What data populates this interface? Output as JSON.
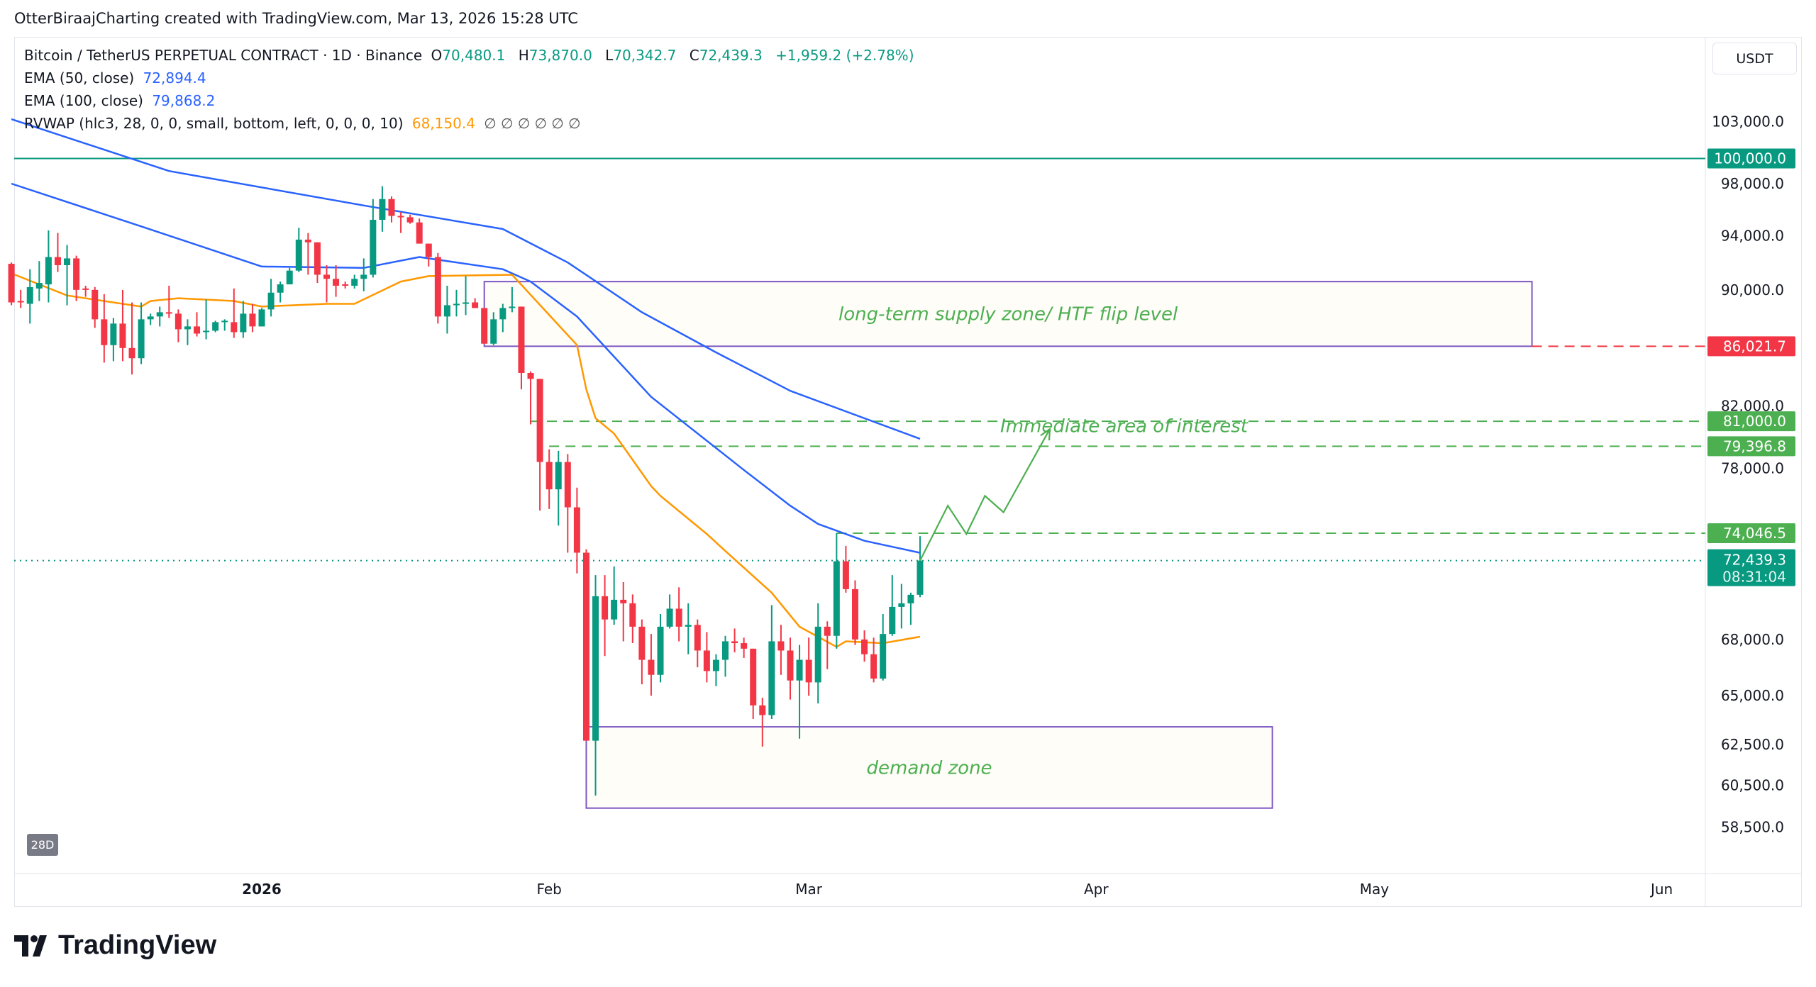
{
  "credit": "OtterBiraajCharting created with TradingView.com, Mar 13, 2026 15:28 UTC",
  "legend": {
    "symbol": "Bitcoin / TetherUS PERPETUAL CONTRACT · 1D · Binance",
    "o_label": "O",
    "o": "70,480.1",
    "h_label": "H",
    "h": "73,870.0",
    "l_label": "L",
    "l": "70,342.7",
    "c_label": "C",
    "c": "72,439.3",
    "change": "+1,959.2 (+2.78%)",
    "ema50_label": "EMA (50, close)",
    "ema50": "72,894.4",
    "ema100_label": "EMA (100, close)",
    "ema100": "79,868.2",
    "rvwap_label": "RVWAP (hlc3, 28, 0, 0, small, bottom, left, 0, 0, 0, 10)",
    "rvwap": "68,150.4",
    "rvwap_extra": "∅ ∅ ∅ ∅ ∅ ∅"
  },
  "currency_button": "USDT",
  "range_badge": "28D",
  "brand": "TradingView",
  "colors": {
    "up": "#089981",
    "down": "#f23645",
    "ema50": "#2962ff",
    "ema100": "#2962ff",
    "rvwap": "#ff9800",
    "zone_border": "#7e57c2",
    "zone_fill": "#fffdf8",
    "annotation": "#4caf50",
    "resistance": "#f23645"
  },
  "chart_data": {
    "type": "candlestick",
    "y_scale": "log",
    "ylim": [
      57000,
      106000
    ],
    "xlim": [
      "2025-12-05",
      "2026-06-10"
    ],
    "y_ticks": [
      "103,000.0",
      "98,000.0",
      "94,000.0",
      "90,000.0",
      "82,000.0",
      "78,000.0",
      "68,000.0",
      "65,000.0",
      "62,500.0",
      "60,500.0",
      "58,500.0"
    ],
    "y_tick_values": [
      103000,
      98000,
      94000,
      90000,
      82000,
      78000,
      68000,
      65000,
      62500,
      60500,
      58500
    ],
    "x_ticks": [
      {
        "label": "2026",
        "date": "2026-01-01",
        "bold": true
      },
      {
        "label": "Feb",
        "date": "2026-02-01"
      },
      {
        "label": "Mar",
        "date": "2026-03-01"
      },
      {
        "label": "Apr",
        "date": "2026-04-01"
      },
      {
        "label": "May",
        "date": "2026-05-01"
      },
      {
        "label": "Jun",
        "date": "2026-06-01"
      }
    ],
    "ohlc_columns": [
      "date",
      "open",
      "high",
      "low",
      "close"
    ],
    "ohlc": [
      [
        "2025-12-05",
        91900,
        92000,
        88900,
        89100
      ],
      [
        "2025-12-06",
        89200,
        90000,
        88700,
        89100
      ],
      [
        "2025-12-07",
        89000,
        91500,
        87600,
        90200
      ],
      [
        "2025-12-08",
        90100,
        92100,
        89200,
        90500
      ],
      [
        "2025-12-09",
        90400,
        94400,
        89100,
        92400
      ],
      [
        "2025-12-10",
        92400,
        94200,
        91300,
        91800
      ],
      [
        "2025-12-11",
        91800,
        93300,
        88900,
        92300
      ],
      [
        "2025-12-12",
        92300,
        92500,
        89200,
        90000
      ],
      [
        "2025-12-13",
        90100,
        90300,
        89500,
        90000
      ],
      [
        "2025-12-14",
        90000,
        90200,
        87300,
        87900
      ],
      [
        "2025-12-15",
        87900,
        89700,
        84900,
        86100
      ],
      [
        "2025-12-16",
        86100,
        88000,
        85000,
        87600
      ],
      [
        "2025-12-17",
        87600,
        90000,
        85000,
        85900
      ],
      [
        "2025-12-18",
        85900,
        89100,
        84100,
        85200
      ],
      [
        "2025-12-19",
        85200,
        89100,
        84800,
        87900
      ],
      [
        "2025-12-20",
        87900,
        88300,
        87500,
        88100
      ],
      [
        "2025-12-21",
        88100,
        88800,
        87400,
        88400
      ],
      [
        "2025-12-22",
        88400,
        90300,
        88000,
        88300
      ],
      [
        "2025-12-23",
        88300,
        88600,
        86300,
        87200
      ],
      [
        "2025-12-24",
        87200,
        87900,
        86100,
        87400
      ],
      [
        "2025-12-25",
        87400,
        88400,
        86700,
        86900
      ],
      [
        "2025-12-26",
        87000,
        89300,
        86500,
        87100
      ],
      [
        "2025-12-27",
        87100,
        87800,
        87000,
        87700
      ],
      [
        "2025-12-28",
        87700,
        87900,
        87100,
        87800
      ],
      [
        "2025-12-29",
        87700,
        90100,
        86600,
        87000
      ],
      [
        "2025-12-30",
        87000,
        89200,
        86600,
        88300
      ],
      [
        "2025-12-31",
        88300,
        89000,
        87000,
        87400
      ],
      [
        "2026-01-01",
        87400,
        88700,
        87400,
        88600
      ],
      [
        "2026-01-02",
        88600,
        90800,
        88100,
        89800
      ],
      [
        "2026-01-03",
        89800,
        90600,
        89100,
        90400
      ],
      [
        "2026-01-04",
        90400,
        91600,
        90400,
        91400
      ],
      [
        "2026-01-05",
        91400,
        94600,
        91300,
        93700
      ],
      [
        "2026-01-06",
        93700,
        94200,
        91100,
        93500
      ],
      [
        "2026-01-07",
        93500,
        93500,
        90500,
        91100
      ],
      [
        "2026-01-08",
        91100,
        91800,
        89100,
        90800
      ],
      [
        "2026-01-09",
        90800,
        91800,
        89500,
        90300
      ],
      [
        "2026-01-10",
        90400,
        90600,
        90100,
        90300
      ],
      [
        "2026-01-11",
        90300,
        91100,
        90100,
        90800
      ],
      [
        "2026-01-12",
        90800,
        92300,
        89900,
        91100
      ],
      [
        "2026-01-13",
        91100,
        96800,
        90900,
        95200
      ],
      [
        "2026-01-14",
        95200,
        97800,
        94300,
        96800
      ],
      [
        "2026-01-15",
        96800,
        97000,
        95000,
        95500
      ],
      [
        "2026-01-16",
        95500,
        95800,
        94200,
        95400
      ],
      [
        "2026-01-17",
        95400,
        95600,
        94900,
        95000
      ],
      [
        "2026-01-18",
        95000,
        95300,
        93400,
        93400
      ],
      [
        "2026-01-19",
        93400,
        93400,
        91700,
        92400
      ],
      [
        "2026-01-20",
        92400,
        92700,
        87600,
        88100
      ],
      [
        "2026-01-21",
        88100,
        90300,
        86900,
        88900
      ],
      [
        "2026-01-22",
        88900,
        90000,
        88100,
        89000
      ],
      [
        "2026-01-23",
        89000,
        91000,
        88200,
        89100
      ],
      [
        "2026-01-24",
        89100,
        89400,
        88700,
        88700
      ],
      [
        "2026-01-25",
        88700,
        88700,
        86200,
        86200
      ],
      [
        "2026-01-26",
        86200,
        88400,
        86100,
        87900
      ],
      [
        "2026-01-27",
        87900,
        89000,
        87000,
        88700
      ],
      [
        "2026-01-28",
        88700,
        90200,
        88400,
        88800
      ],
      [
        "2026-01-29",
        88800,
        88800,
        83100,
        84200
      ],
      [
        "2026-01-30",
        84200,
        84300,
        80800,
        83800
      ],
      [
        "2026-01-31",
        83800,
        83800,
        75400,
        78400
      ],
      [
        "2026-02-01",
        78400,
        79200,
        75500,
        76700
      ],
      [
        "2026-02-02",
        76700,
        79100,
        74500,
        78400
      ],
      [
        "2026-02-03",
        78400,
        78900,
        72900,
        75600
      ],
      [
        "2026-02-04",
        75600,
        76800,
        71700,
        72900
      ],
      [
        "2026-02-05",
        72900,
        73100,
        62700,
        62700
      ],
      [
        "2026-02-06",
        62700,
        71600,
        60000,
        70400
      ],
      [
        "2026-02-07",
        70400,
        71600,
        67100,
        69100
      ],
      [
        "2026-02-08",
        69100,
        72100,
        68800,
        70200
      ],
      [
        "2026-02-09",
        70200,
        71200,
        67900,
        70000
      ],
      [
        "2026-02-10",
        70000,
        70500,
        67800,
        68700
      ],
      [
        "2026-02-11",
        68700,
        69100,
        65600,
        66900
      ],
      [
        "2026-02-12",
        66900,
        68300,
        65000,
        66100
      ],
      [
        "2026-02-13",
        66100,
        69400,
        65700,
        68700
      ],
      [
        "2026-02-14",
        68700,
        70500,
        68600,
        69700
      ],
      [
        "2026-02-15",
        69700,
        70900,
        67900,
        68700
      ],
      [
        "2026-02-16",
        68700,
        70000,
        67200,
        68800
      ],
      [
        "2026-02-17",
        68800,
        69100,
        66500,
        67400
      ],
      [
        "2026-02-18",
        67400,
        68400,
        65700,
        66300
      ],
      [
        "2026-02-19",
        66300,
        67200,
        65500,
        66900
      ],
      [
        "2026-02-20",
        66900,
        68200,
        66000,
        67900
      ],
      [
        "2026-02-21",
        67900,
        68600,
        67300,
        67800
      ],
      [
        "2026-02-22",
        67800,
        68100,
        67000,
        67500
      ],
      [
        "2026-02-23",
        67500,
        67500,
        63800,
        64500
      ],
      [
        "2026-02-24",
        64500,
        64900,
        62400,
        64000
      ],
      [
        "2026-02-25",
        64000,
        69900,
        63800,
        67900
      ],
      [
        "2026-02-26",
        67900,
        68800,
        66100,
        67400
      ],
      [
        "2026-02-27",
        67400,
        68100,
        64800,
        65800
      ],
      [
        "2026-02-28",
        65800,
        67700,
        62800,
        66900
      ],
      [
        "2026-03-01",
        66900,
        68100,
        65000,
        65700
      ],
      [
        "2026-03-02",
        65700,
        70000,
        64600,
        68700
      ],
      [
        "2026-03-03",
        68700,
        69000,
        66400,
        68200
      ],
      [
        "2026-03-04",
        68200,
        74046.5,
        67500,
        72400
      ],
      [
        "2026-03-05",
        72400,
        73300,
        70600,
        70800
      ],
      [
        "2026-03-06",
        70800,
        71300,
        67700,
        68000
      ],
      [
        "2026-03-07",
        68000,
        68500,
        66800,
        67200
      ],
      [
        "2026-03-08",
        67200,
        68100,
        65700,
        65900
      ],
      [
        "2026-03-09",
        65900,
        69400,
        65800,
        68300
      ],
      [
        "2026-03-10",
        68300,
        71600,
        68200,
        69800
      ],
      [
        "2026-03-11",
        69800,
        71100,
        68600,
        70000
      ],
      [
        "2026-03-12",
        70000,
        70600,
        68800,
        70480.1
      ],
      [
        "2026-03-13",
        70480.1,
        73870.0,
        70342.7,
        72439.3
      ]
    ],
    "series": [
      {
        "name": "EMA (100, close)",
        "color": "#2962ff",
        "points": [
          [
            "2025-12-05",
            103200
          ],
          [
            "2025-12-22",
            99000
          ],
          [
            "2026-01-12",
            96300
          ],
          [
            "2026-01-27",
            94500
          ],
          [
            "2026-02-03",
            92000
          ],
          [
            "2026-02-11",
            88400
          ],
          [
            "2026-02-19",
            85600
          ],
          [
            "2026-02-27",
            83000
          ],
          [
            "2026-03-13",
            79868.2
          ]
        ]
      },
      {
        "name": "EMA (50, close)",
        "color": "#2962ff",
        "points": [
          [
            "2025-12-05",
            98000
          ],
          [
            "2025-12-19",
            94700
          ],
          [
            "2026-01-01",
            91700
          ],
          [
            "2026-01-12",
            91600
          ],
          [
            "2026-01-18",
            92400
          ],
          [
            "2026-01-27",
            91500
          ],
          [
            "2026-01-30",
            90600
          ],
          [
            "2026-02-04",
            88100
          ],
          [
            "2026-02-12",
            82600
          ],
          [
            "2026-02-22",
            77900
          ],
          [
            "2026-02-27",
            75700
          ],
          [
            "2026-03-02",
            74600
          ],
          [
            "2026-03-07",
            73600
          ],
          [
            "2026-03-13",
            72894.4
          ]
        ]
      },
      {
        "name": "RVWAP",
        "color": "#ff9800",
        "points": [
          [
            "2025-12-05",
            91200
          ],
          [
            "2025-12-11",
            89600
          ],
          [
            "2025-12-19",
            88800
          ],
          [
            "2025-12-20",
            89200
          ],
          [
            "2025-12-23",
            89400
          ],
          [
            "2025-12-29",
            89200
          ],
          [
            "2026-01-01",
            88800
          ],
          [
            "2026-01-08",
            89000
          ],
          [
            "2026-01-11",
            89000
          ],
          [
            "2026-01-16",
            90600
          ],
          [
            "2026-01-19",
            91000
          ],
          [
            "2026-01-28",
            91100
          ],
          [
            "2026-02-04",
            86100
          ],
          [
            "2026-02-05",
            83100
          ],
          [
            "2026-02-06",
            81200
          ],
          [
            "2026-02-08",
            80200
          ],
          [
            "2026-02-12",
            76900
          ],
          [
            "2026-02-13",
            76300
          ],
          [
            "2026-02-18",
            74000
          ],
          [
            "2026-02-20",
            73000
          ],
          [
            "2026-02-25",
            70600
          ],
          [
            "2026-02-28",
            68700
          ],
          [
            "2026-03-04",
            67600
          ],
          [
            "2026-03-05",
            67900
          ],
          [
            "2026-03-09",
            67800
          ],
          [
            "2026-03-13",
            68150.4
          ]
        ]
      }
    ],
    "levels": [
      {
        "value": 100000,
        "label": "100,000.0",
        "style": "solid",
        "color": "#089981",
        "from": "2025-12-05"
      },
      {
        "value": 86021.7,
        "label": "86,021.7",
        "style": "dashed",
        "color": "#f23645",
        "from": "2026-05-18"
      },
      {
        "value": 81000,
        "label": "81,000.0",
        "style": "dashed",
        "color": "#4caf50",
        "from": "2026-01-30"
      },
      {
        "value": 79396.8,
        "label": "79,396.8",
        "style": "dashed",
        "color": "#4caf50",
        "from": "2026-02-01"
      },
      {
        "value": 74046.5,
        "label": "74,046.5",
        "style": "dashed",
        "color": "#4caf50",
        "from": "2026-03-04"
      }
    ],
    "last_price": {
      "value": 72439.3,
      "label": "72,439.3",
      "countdown": "08:31:04",
      "color": "#089981"
    },
    "zones": [
      {
        "name": "supply",
        "label": "long-term supply zone/ HTF flip level",
        "from": "2026-01-25",
        "to": "2026-05-18",
        "top": 90600,
        "bottom": 86021.7
      },
      {
        "name": "demand",
        "label": "demand zone",
        "from": "2026-02-05",
        "to": "2026-04-20",
        "top": 63400,
        "bottom": 59400
      }
    ],
    "annotations": [
      {
        "text": "Immediate area of interest",
        "date": "2026-04-04",
        "price": 80300
      }
    ],
    "projection": [
      [
        "2026-03-13",
        72439.3
      ],
      [
        "2026-03-16",
        75700
      ],
      [
        "2026-03-18",
        74000
      ],
      [
        "2026-03-20",
        76300
      ],
      [
        "2026-03-22",
        75300
      ],
      [
        "2026-03-27",
        80500
      ]
    ]
  }
}
